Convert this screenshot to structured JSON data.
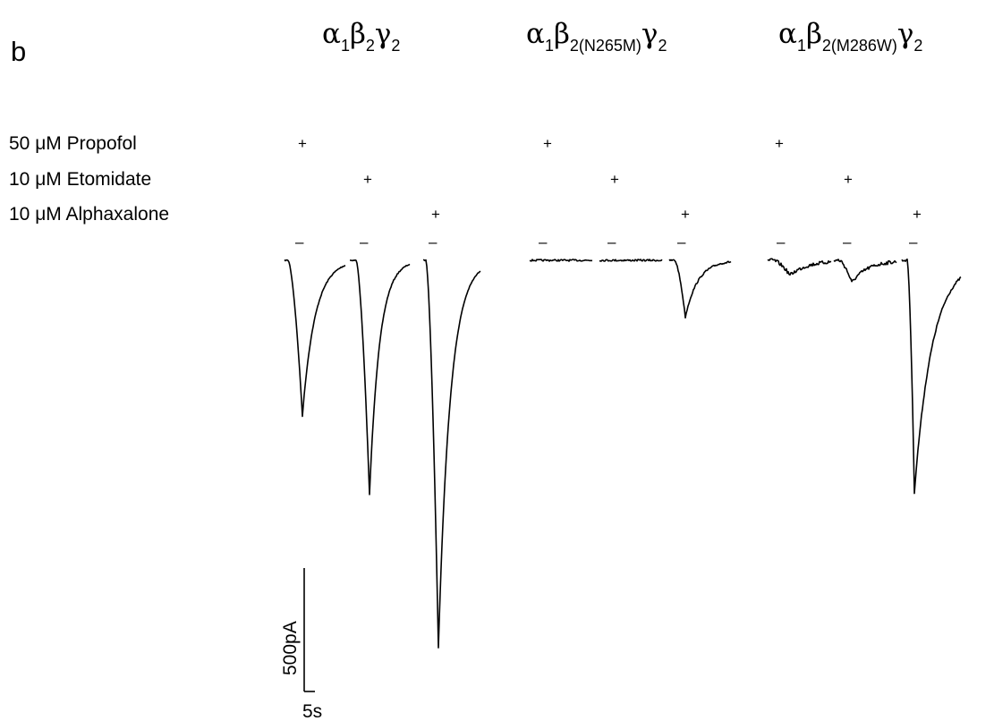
{
  "panel_label": "b",
  "constructs": [
    {
      "main": "α",
      "s1": "1",
      "mid": "β",
      "s2": "2",
      "tail": "γ",
      "s3": "2"
    },
    {
      "main": "α",
      "s1": "1",
      "mid": "β",
      "s2": "2(N265M)",
      "tail": "γ",
      "s3": "2"
    },
    {
      "main": "α",
      "s1": "1",
      "mid": "β",
      "s2": "2(M286W)",
      "tail": "γ",
      "s3": "2"
    }
  ],
  "drugs": [
    {
      "prefix": "50 ",
      "unit": "μM",
      "name": " Propofol"
    },
    {
      "prefix": "10 ",
      "unit": "μM",
      "name": " Etomidate"
    },
    {
      "prefix": "10 ",
      "unit": "μM",
      "name": " Alphaxalone"
    }
  ],
  "application_marker": "+",
  "application_bar": "–",
  "scale_bar": {
    "current_label": "500pA",
    "time_label": "5s",
    "current_pA": 500,
    "time_s": 5
  },
  "responses_pA": {
    "alpha1_beta2_gamma2": {
      "propofol": 630,
      "etomidate": 950,
      "alphaxalone": 1570
    },
    "alpha1_beta2_N265M_gamma2": {
      "propofol": 0,
      "etomidate": 0,
      "alphaxalone": 230
    },
    "alpha1_beta2_M286W_gamma2": {
      "propofol": 60,
      "etomidate": 90,
      "alphaxalone": 940
    }
  }
}
